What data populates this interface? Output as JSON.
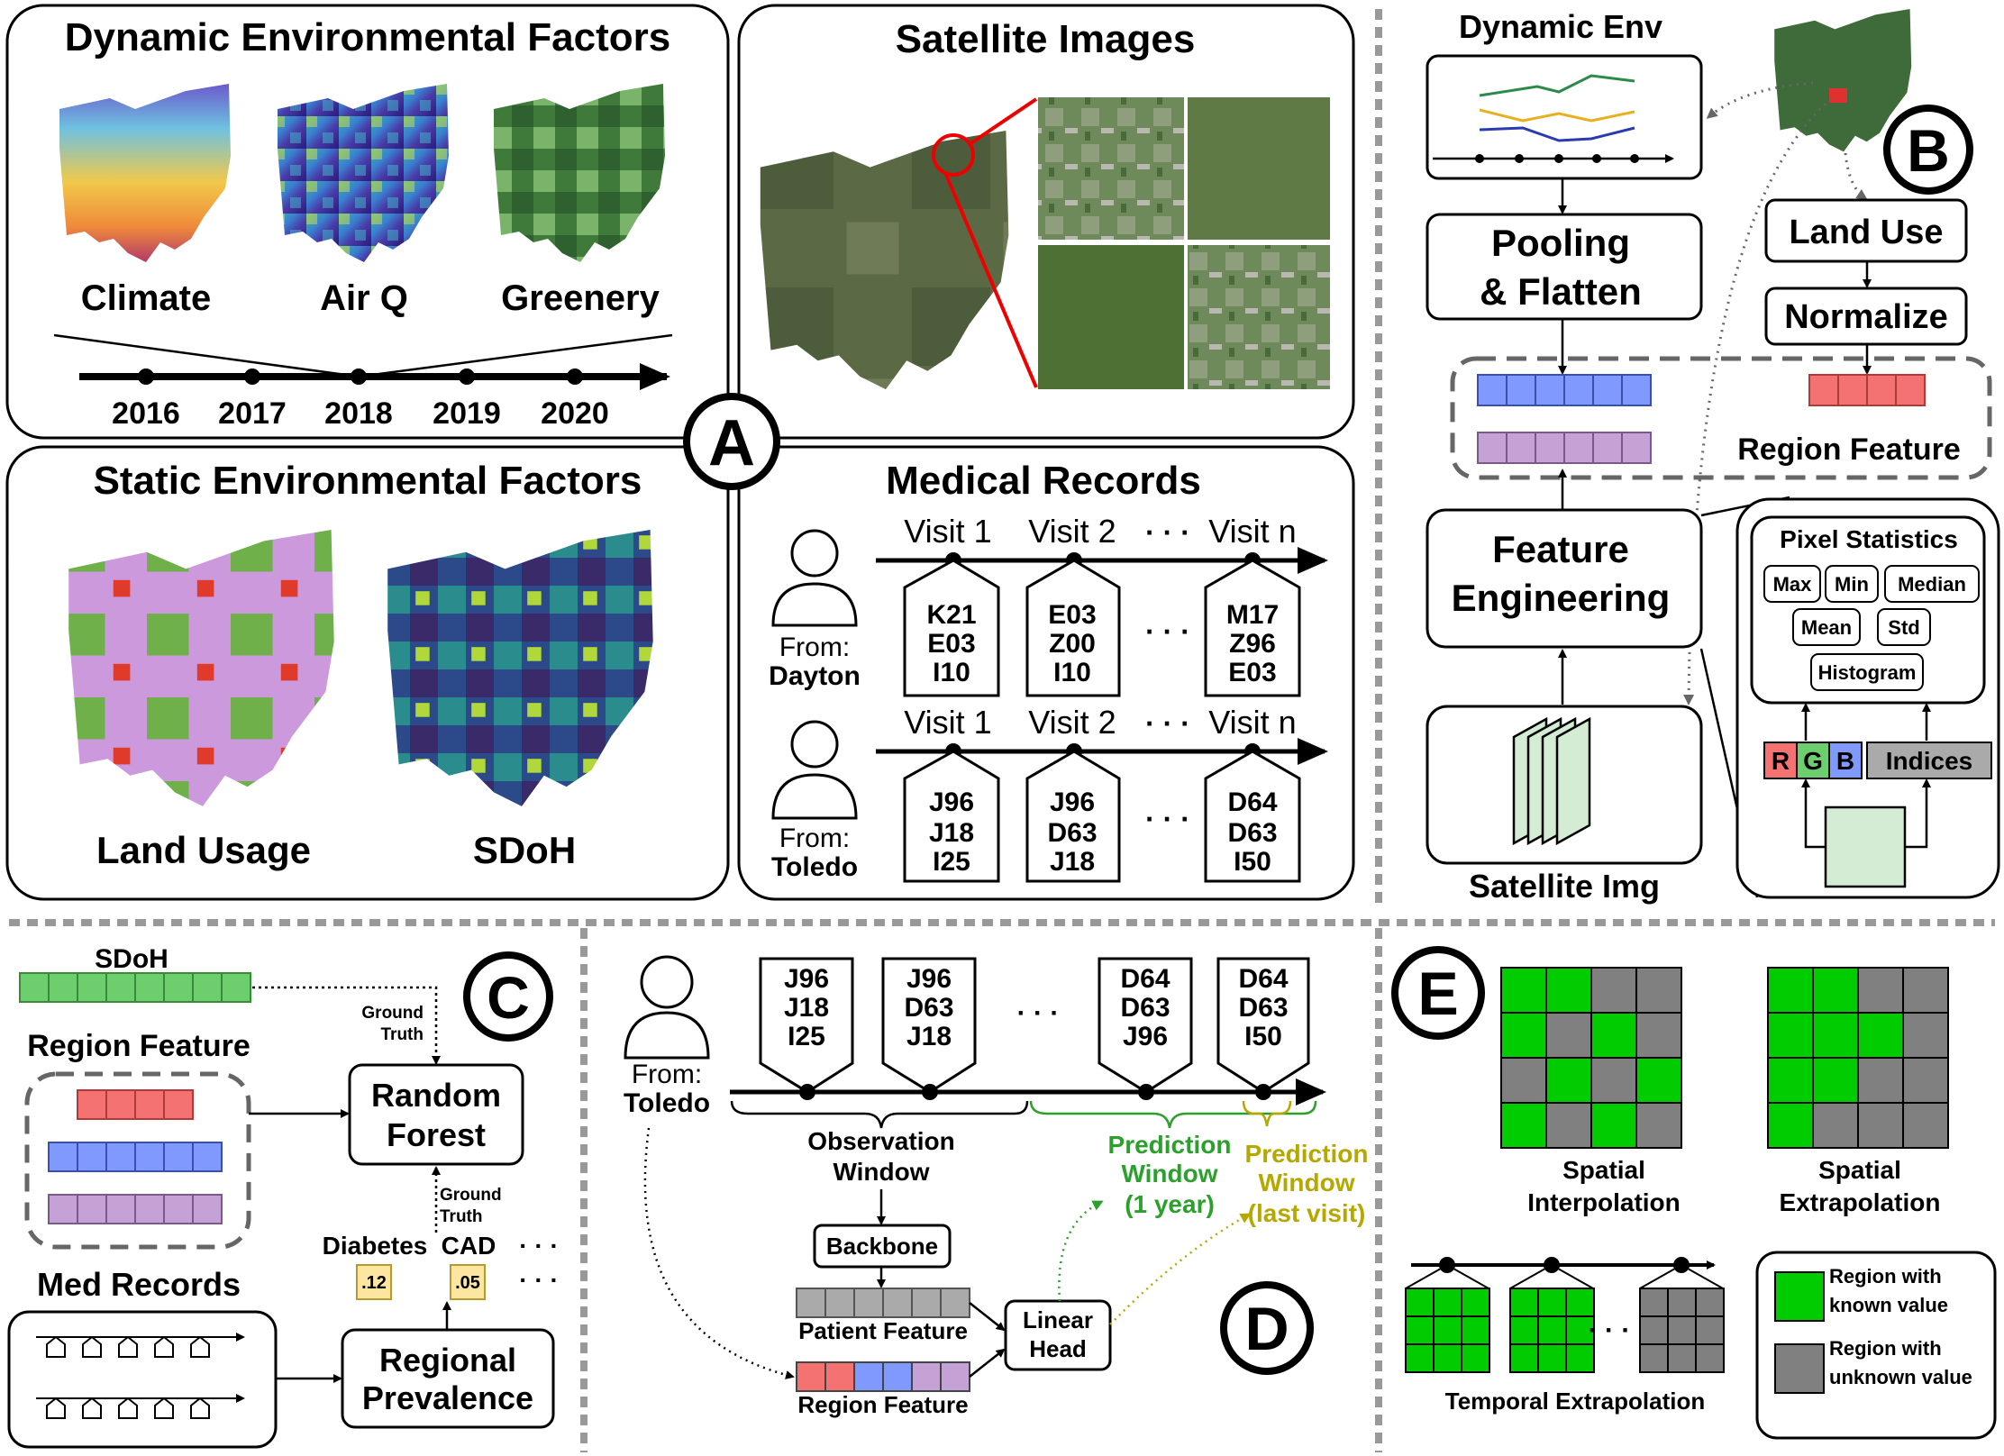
{
  "panelA": {
    "badge": "A",
    "dyn": {
      "title": "Dynamic Environmental Factors",
      "maps": [
        "Climate",
        "Air Q",
        "Greenery"
      ],
      "years": [
        "2016",
        "2017",
        "2018",
        "2019",
        "2020"
      ]
    },
    "sat": {
      "title": "Satellite Images"
    },
    "static": {
      "title": "Static Environmental Factors",
      "maps": [
        "Land Usage",
        "SDoH"
      ]
    },
    "med": {
      "title": "Medical Records",
      "patients": [
        {
          "from_label": "From:",
          "city": "Dayton",
          "visits": [
            "Visit 1",
            "Visit 2",
            "Visit n"
          ],
          "dots": "· · ·",
          "codes": [
            [
              "K21",
              "E03",
              "I10"
            ],
            [
              "E03",
              "Z00",
              "I10"
            ],
            [
              "M17",
              "Z96",
              "E03"
            ]
          ]
        },
        {
          "from_label": "From:",
          "city": "Toledo",
          "visits": [
            "Visit 1",
            "Visit 2",
            "Visit n"
          ],
          "dots": "· · ·",
          "codes": [
            [
              "J96",
              "J18",
              "I25"
            ],
            [
              "J96",
              "D63",
              "J18"
            ],
            [
              "D64",
              "D63",
              "I50"
            ]
          ]
        }
      ]
    }
  },
  "panelB": {
    "badge": "B",
    "dynamic_env": "Dynamic Env",
    "pooling": [
      "Pooling",
      "& Flatten"
    ],
    "land_use": "Land Use",
    "normalize": "Normalize",
    "region_feature": "Region Feature",
    "feature_eng": [
      "Feature",
      "Engineering"
    ],
    "satellite_img": "Satellite Img",
    "pixel_stats": {
      "title": "Pixel Statistics",
      "stats": [
        "Max",
        "Min",
        "Median",
        "Mean",
        "Std",
        "Histogram"
      ]
    },
    "rgb": [
      "R",
      "G",
      "B"
    ],
    "indices": "Indices",
    "colors": {
      "blue": "#7f99ff",
      "purple": "#c4a2d6",
      "red": "#f47272",
      "green": "#6dce6d",
      "sat_green": "#d4ecd4"
    }
  },
  "panelC": {
    "badge": "C",
    "sdoh": "SDoH",
    "region_feature": "Region Feature",
    "med_records": "Med Records",
    "random_forest": [
      "Random",
      "Forest"
    ],
    "ground_truth": [
      "Ground",
      "Truth"
    ],
    "diseases": [
      "Diabetes",
      "CAD",
      "· · ·"
    ],
    "values": [
      ".12",
      ".05",
      "· · ·"
    ],
    "regional": [
      "Regional",
      "Prevalence"
    ]
  },
  "panelD": {
    "badge": "D",
    "from_label": "From:",
    "city": "Toledo",
    "codes": [
      [
        "J96",
        "J18",
        "I25"
      ],
      [
        "J96",
        "D63",
        "J18"
      ],
      [
        "D64",
        "D63",
        "J96"
      ],
      [
        "D64",
        "D63",
        "I50"
      ]
    ],
    "dots": "· · ·",
    "observation": [
      "Observation",
      "Window"
    ],
    "pred1": [
      "Prediction",
      "Window",
      "(1 year)"
    ],
    "pred2": [
      "Prediction",
      "Window",
      "(last visit)"
    ],
    "backbone": "Backbone",
    "patient_feature": "Patient Feature",
    "region_feature": "Region Feature",
    "linear_head": [
      "Linear",
      "Head"
    ],
    "colors": {
      "green": "#2ca02c",
      "olive": "#b5a800"
    }
  },
  "panelE": {
    "badge": "E",
    "spatial_interp": [
      "Spatial",
      "Interpolation"
    ],
    "spatial_extrap": [
      "Spatial",
      "Extrapolation"
    ],
    "temporal": "Temporal Extrapolation",
    "dots": "· · ·",
    "legend_known": [
      "Region with",
      "known value"
    ],
    "legend_unknown": [
      "Region with",
      "unknown value"
    ],
    "interp_grid": [
      [
        1,
        1,
        0,
        0
      ],
      [
        1,
        0,
        1,
        0
      ],
      [
        0,
        1,
        0,
        1
      ],
      [
        1,
        0,
        1,
        0
      ]
    ],
    "extrap_grid": [
      [
        1,
        1,
        0,
        0
      ],
      [
        1,
        1,
        1,
        0
      ],
      [
        1,
        1,
        0,
        0
      ],
      [
        1,
        0,
        0,
        0
      ]
    ],
    "colors": {
      "known": "#00cc00",
      "unknown": "#808080"
    }
  }
}
